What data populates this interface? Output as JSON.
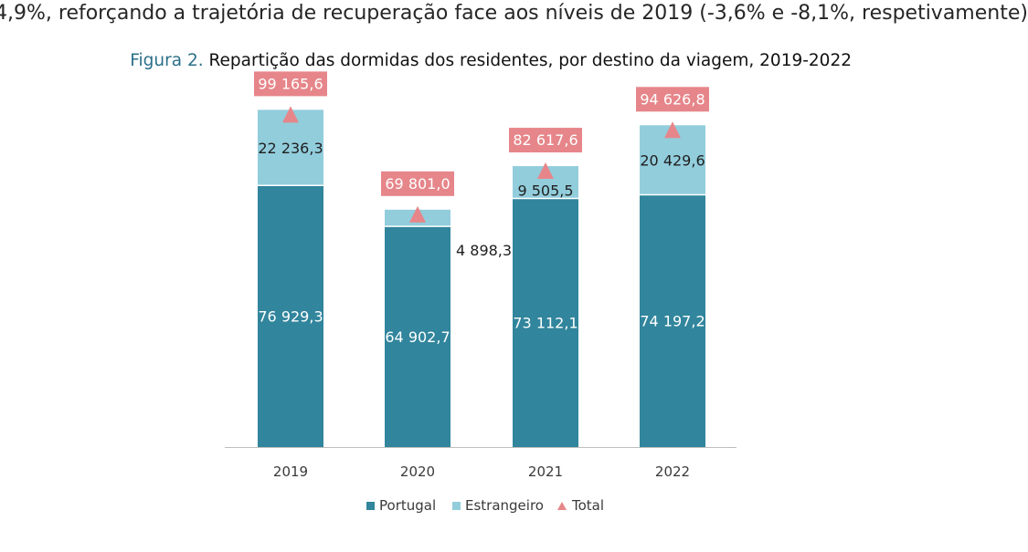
{
  "document": {
    "body_text": "4,9%, reforçando a trajetória de recuperação face aos níveis de 2019 (-3,6% e -8,1%, respetivamente)",
    "figure_label": "Figura 2.",
    "figure_title": "Repartição das dormidas dos residentes, por destino da viagem, 2019-2022"
  },
  "chart_data": {
    "type": "bar",
    "stacked": true,
    "categories": [
      "2019",
      "2020",
      "2021",
      "2022"
    ],
    "series": [
      {
        "name": "Portugal",
        "values": [
          76929.3,
          64902.7,
          73112.1,
          74197.2
        ],
        "labels": [
          "76 929,3",
          "64 902,7",
          "73 112,1",
          "74 197,2"
        ],
        "color": "#31859c"
      },
      {
        "name": "Estrangeiro",
        "values": [
          22236.3,
          4898.3,
          9505.5,
          20429.6
        ],
        "labels": [
          "22 236,3",
          "4 898,3",
          "9 505,5",
          "20 429,6"
        ],
        "color": "#92cddc"
      }
    ],
    "total": {
      "name": "Total",
      "values": [
        99165.6,
        69801.0,
        82617.6,
        94626.8
      ],
      "labels": [
        "99 165,6",
        "69 801,0",
        "82 617,6",
        "94 626,8"
      ],
      "color": "#e6868a"
    },
    "ylim": [
      0,
      110000
    ],
    "grid": false,
    "legend": "bottom"
  }
}
